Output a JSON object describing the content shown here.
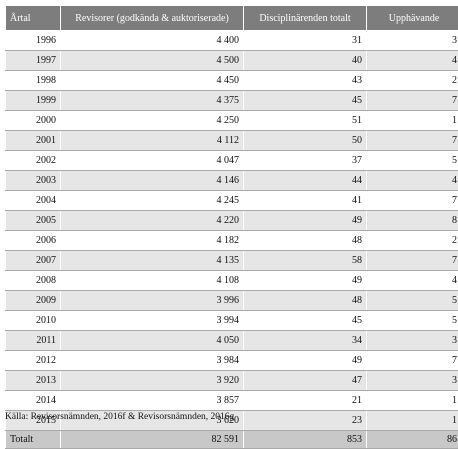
{
  "table": {
    "headers": [
      "Årtal",
      "Revisorer (godkända & auktoriserade)",
      "Disciplinärenden totalt",
      "Upphävande"
    ],
    "rows": [
      [
        "1996",
        "4 400",
        "31",
        "3"
      ],
      [
        "1997",
        "4 500",
        "40",
        "4"
      ],
      [
        "1998",
        "4 450",
        "43",
        "2"
      ],
      [
        "1999",
        "4 375",
        "45",
        "7"
      ],
      [
        "2000",
        "4 250",
        "51",
        "1"
      ],
      [
        "2001",
        "4 112",
        "50",
        "7"
      ],
      [
        "2002",
        "4 047",
        "37",
        "5"
      ],
      [
        "2003",
        "4 146",
        "44",
        "4"
      ],
      [
        "2004",
        "4 245",
        "41",
        "7"
      ],
      [
        "2005",
        "4 220",
        "49",
        "8"
      ],
      [
        "2006",
        "4 182",
        "48",
        "2"
      ],
      [
        "2007",
        "4 135",
        "58",
        "7"
      ],
      [
        "2008",
        "4 108",
        "49",
        "4"
      ],
      [
        "2009",
        "3 996",
        "48",
        "5"
      ],
      [
        "2010",
        "3 994",
        "45",
        "5"
      ],
      [
        "2011",
        "4 050",
        "34",
        "3"
      ],
      [
        "2012",
        "3 984",
        "49",
        "7"
      ],
      [
        "2013",
        "3 920",
        "47",
        "3"
      ],
      [
        "2014",
        "3 857",
        "21",
        "1"
      ],
      [
        "2015",
        "3 620",
        "23",
        "1"
      ]
    ],
    "total": [
      "Totalt",
      "82 591",
      "853",
      "86"
    ]
  },
  "source": "Källa: Revisorsnämnden, 2016f & Revisorsnämnden, 2016g"
}
